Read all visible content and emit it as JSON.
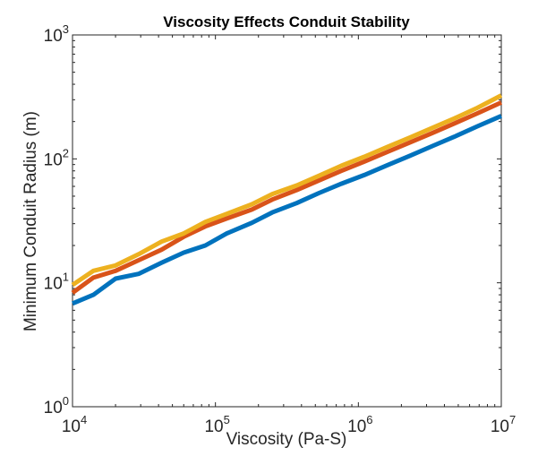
{
  "chart_data": {
    "type": "line",
    "title": "Viscosity Effects Conduit Stability",
    "xlabel": "Viscosity (Pa-S)",
    "ylabel": "Minimum Conduit Radius (m)",
    "xscale": "log",
    "yscale": "log",
    "xlim": [
      10000,
      10000000
    ],
    "ylim": [
      1,
      1000
    ],
    "grid": false,
    "x_ticks": [
      {
        "base": "10",
        "exp": "4",
        "value": 10000
      },
      {
        "base": "10",
        "exp": "5",
        "value": 100000
      },
      {
        "base": "10",
        "exp": "6",
        "value": 1000000
      },
      {
        "base": "10",
        "exp": "7",
        "value": 10000000
      }
    ],
    "y_ticks": [
      {
        "base": "10",
        "exp": "0",
        "value": 1
      },
      {
        "base": "10",
        "exp": "1",
        "value": 10
      },
      {
        "base": "10",
        "exp": "2",
        "value": 100
      },
      {
        "base": "10",
        "exp": "3",
        "value": 1000
      }
    ],
    "x": [
      10000,
      14000,
      20000,
      29000,
      42000,
      60000,
      85000,
      120000,
      180000,
      250000,
      370000,
      530000,
      760000,
      1100000,
      1600000,
      2300000,
      3300000,
      4700000,
      6800000,
      10000000
    ],
    "series": [
      {
        "color": "#0072BD",
        "values": [
          6.8,
          8.0,
          10.8,
          11.8,
          14.5,
          17.5,
          20.0,
          25.0,
          30.5,
          37.0,
          44.0,
          53.0,
          63.0,
          74.0,
          89.0,
          106.0,
          127.0,
          151.0,
          183.0,
          222.0
        ]
      },
      {
        "color": "#D95319",
        "values": [
          8.3,
          11.0,
          12.5,
          15.2,
          18.5,
          23.5,
          28.5,
          33.0,
          39.0,
          47.0,
          56.0,
          67.0,
          80.0,
          95.0,
          114.0,
          136.0,
          162.0,
          193.0,
          233.0,
          285.0
        ]
      },
      {
        "color": "#EDB120",
        "values": [
          9.6,
          12.5,
          13.8,
          17.0,
          21.5,
          25.0,
          31.0,
          36.0,
          43.0,
          52.0,
          61.0,
          73.0,
          88.0,
          104.0,
          125.0,
          149.0,
          178.0,
          212.0,
          258.0,
          325.0
        ]
      }
    ]
  }
}
